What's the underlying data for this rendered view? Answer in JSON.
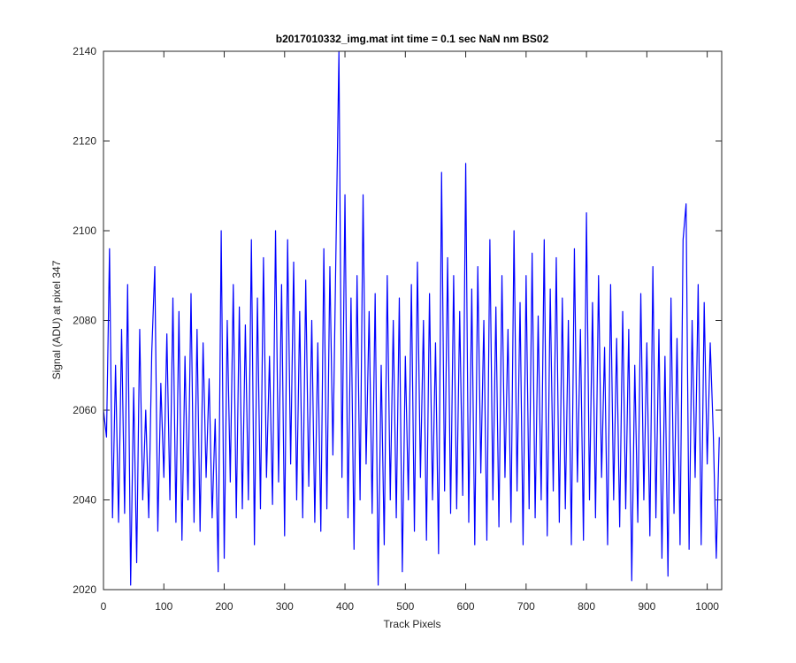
{
  "chart_data": {
    "type": "line",
    "title": "b2017010332_img.mat int time = 0.1 sec  NaN nm BS02",
    "xlabel": "Track Pixels",
    "ylabel": "Signal (ADU) at pixel 347",
    "xlim": [
      0,
      1024
    ],
    "ylim": [
      2020,
      2140
    ],
    "xticks": [
      0,
      100,
      200,
      300,
      400,
      500,
      600,
      700,
      800,
      900,
      1000
    ],
    "yticks": [
      2020,
      2040,
      2060,
      2080,
      2100,
      2120,
      2140
    ],
    "x": [
      0,
      5,
      10,
      15,
      20,
      25,
      30,
      35,
      40,
      45,
      50,
      55,
      60,
      65,
      70,
      75,
      80,
      85,
      90,
      95,
      100,
      105,
      110,
      115,
      120,
      125,
      130,
      135,
      140,
      145,
      150,
      155,
      160,
      165,
      170,
      175,
      180,
      185,
      190,
      195,
      200,
      205,
      210,
      215,
      220,
      225,
      230,
      235,
      240,
      245,
      250,
      255,
      260,
      265,
      270,
      275,
      280,
      285,
      290,
      295,
      300,
      305,
      310,
      315,
      320,
      325,
      330,
      335,
      340,
      345,
      350,
      355,
      360,
      365,
      370,
      375,
      380,
      385,
      390,
      395,
      400,
      405,
      410,
      415,
      420,
      425,
      430,
      435,
      440,
      445,
      450,
      455,
      460,
      465,
      470,
      475,
      480,
      485,
      490,
      495,
      500,
      505,
      510,
      515,
      520,
      525,
      530,
      535,
      540,
      545,
      550,
      555,
      560,
      565,
      570,
      575,
      580,
      585,
      590,
      595,
      600,
      605,
      610,
      615,
      620,
      625,
      630,
      635,
      640,
      645,
      650,
      655,
      660,
      665,
      670,
      675,
      680,
      685,
      690,
      695,
      700,
      705,
      710,
      715,
      720,
      725,
      730,
      735,
      740,
      745,
      750,
      755,
      760,
      765,
      770,
      775,
      780,
      785,
      790,
      795,
      800,
      805,
      810,
      815,
      820,
      825,
      830,
      835,
      840,
      845,
      850,
      855,
      860,
      865,
      870,
      875,
      880,
      885,
      890,
      895,
      900,
      905,
      910,
      915,
      920,
      925,
      930,
      935,
      940,
      945,
      950,
      955,
      960,
      965,
      970,
      975,
      980,
      985,
      990,
      995,
      1000,
      1005,
      1010,
      1015,
      1020
    ],
    "series": [
      {
        "name": "signal",
        "color": "#0000ff",
        "values": [
          2060,
          2054,
          2096,
          2036,
          2070,
          2035,
          2078,
          2037,
          2088,
          2021,
          2065,
          2026,
          2078,
          2040,
          2060,
          2036,
          2073,
          2092,
          2033,
          2066,
          2045,
          2077,
          2040,
          2085,
          2035,
          2082,
          2031,
          2072,
          2040,
          2086,
          2035,
          2078,
          2033,
          2075,
          2045,
          2067,
          2036,
          2058,
          2024,
          2100,
          2027,
          2080,
          2044,
          2088,
          2036,
          2083,
          2038,
          2079,
          2040,
          2098,
          2030,
          2085,
          2038,
          2094,
          2045,
          2072,
          2039,
          2100,
          2044,
          2088,
          2032,
          2098,
          2048,
          2093,
          2040,
          2082,
          2036,
          2089,
          2043,
          2080,
          2035,
          2075,
          2033,
          2096,
          2038,
          2092,
          2050,
          2095,
          2140,
          2045,
          2108,
          2036,
          2085,
          2029,
          2090,
          2040,
          2108,
          2048,
          2082,
          2037,
          2086,
          2021,
          2070,
          2030,
          2090,
          2040,
          2080,
          2036,
          2085,
          2024,
          2072,
          2040,
          2088,
          2033,
          2093,
          2045,
          2080,
          2031,
          2086,
          2040,
          2075,
          2028,
          2113,
          2042,
          2094,
          2037,
          2090,
          2038,
          2082,
          2041,
          2115,
          2035,
          2087,
          2030,
          2092,
          2046,
          2080,
          2031,
          2098,
          2040,
          2083,
          2034,
          2090,
          2045,
          2078,
          2035,
          2100,
          2042,
          2084,
          2030,
          2090,
          2038,
          2095,
          2036,
          2081,
          2040,
          2098,
          2032,
          2087,
          2042,
          2094,
          2035,
          2085,
          2038,
          2080,
          2030,
          2096,
          2044,
          2078,
          2031,
          2104,
          2040,
          2084,
          2036,
          2090,
          2045,
          2074,
          2030,
          2088,
          2040,
          2076,
          2034,
          2082,
          2038,
          2078,
          2022,
          2070,
          2035,
          2086,
          2040,
          2075,
          2032,
          2092,
          2036,
          2078,
          2027,
          2072,
          2023,
          2085,
          2037,
          2076,
          2030,
          2098,
          2106,
          2029,
          2080,
          2045,
          2088,
          2030,
          2084,
          2048,
          2075,
          2055,
          2027,
          2054
        ]
      }
    ]
  }
}
